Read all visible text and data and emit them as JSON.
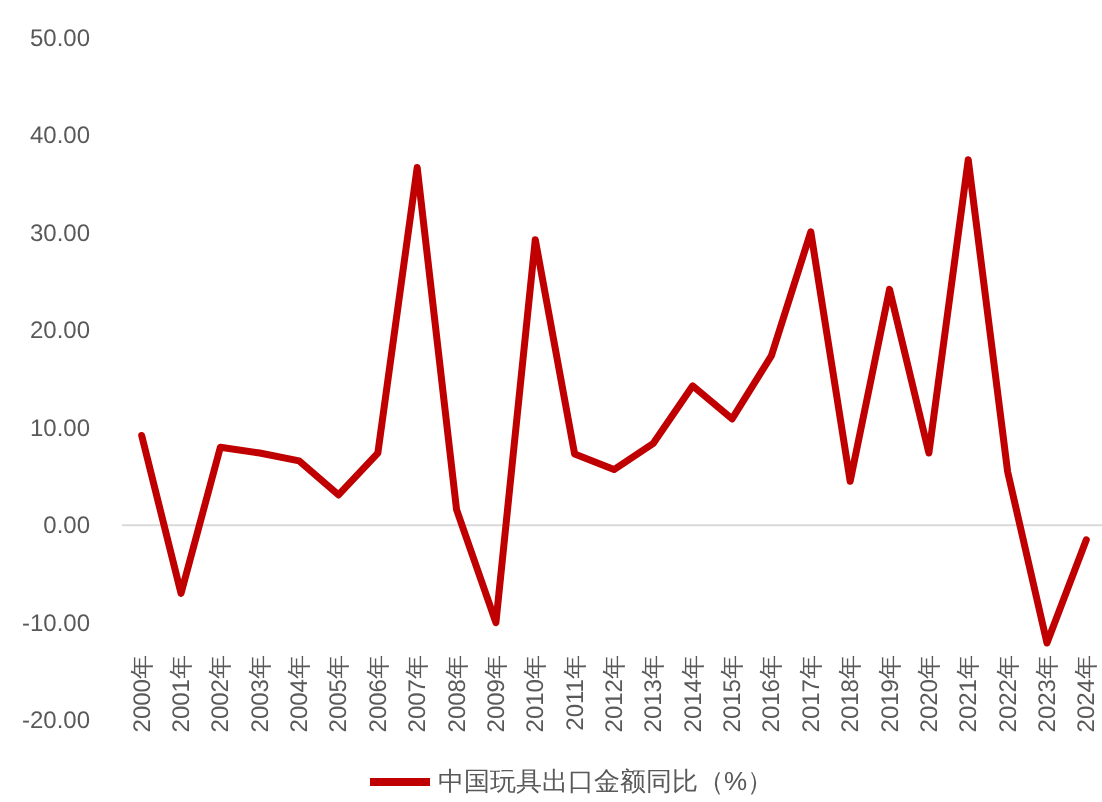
{
  "chart_data": {
    "type": "line",
    "categories": [
      "2000年",
      "2001年",
      "2002年",
      "2003年",
      "2004年",
      "2005年",
      "2006年",
      "2007年",
      "2008年",
      "2009年",
      "2010年",
      "2011年",
      "2012年",
      "2013年",
      "2014年",
      "2015年",
      "2016年",
      "2017年",
      "2018年",
      "2019年",
      "2020年",
      "2021年",
      "2022年",
      "2023年",
      "2024年"
    ],
    "series": [
      {
        "name": "中国玩具出口金额同比（%）",
        "color": "#c00000",
        "values": [
          9.2,
          -7,
          8.0,
          7.4,
          6.6,
          3.1,
          7.4,
          36.7,
          1.6,
          -10,
          29.3,
          7.3,
          5.7,
          8.4,
          14.3,
          10.9,
          17.4,
          30.1,
          4.5,
          24.2,
          7.4,
          37.5,
          5.5,
          -12.1,
          -1.5
        ]
      }
    ],
    "ylim": [
      -20,
      50
    ],
    "yticks": [
      {
        "value": -20,
        "label": "-20.00"
      },
      {
        "value": -10,
        "label": "-10.00"
      },
      {
        "value": 0,
        "label": "0.00"
      },
      {
        "value": 10,
        "label": "10.00"
      },
      {
        "value": 20,
        "label": "20.00"
      },
      {
        "value": 30,
        "label": "30.00"
      },
      {
        "value": 40,
        "label": "40.00"
      },
      {
        "value": 50,
        "label": "50.00"
      }
    ],
    "ref_lines": [
      {
        "axis": "y",
        "value": 0,
        "color": "#d9d9d9"
      }
    ],
    "grid": false,
    "legend": "bottom"
  }
}
